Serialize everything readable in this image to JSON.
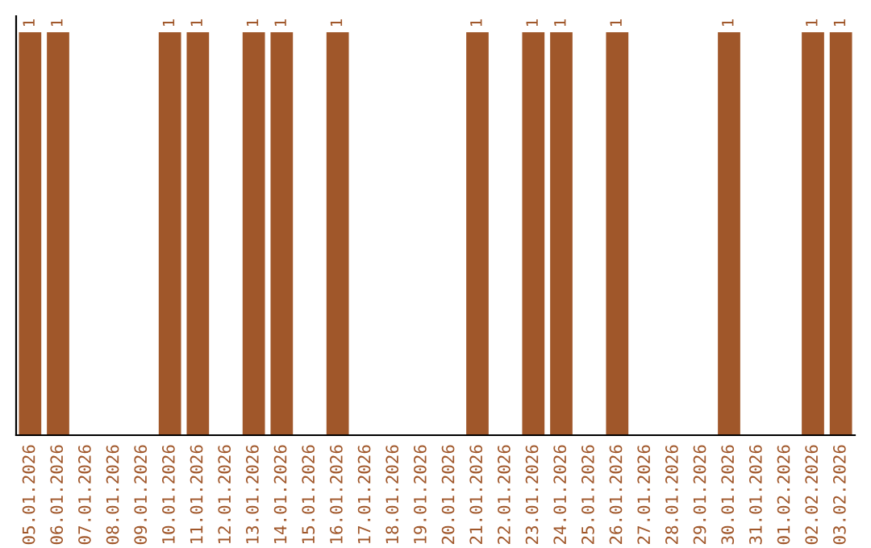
{
  "chart_data": {
    "type": "bar",
    "categories": [
      "05.01.2026",
      "06.01.2026",
      "07.01.2026",
      "08.01.2026",
      "09.01.2026",
      "10.01.2026",
      "11.01.2026",
      "12.01.2026",
      "13.01.2026",
      "14.01.2026",
      "15.01.2026",
      "16.01.2026",
      "17.01.2026",
      "18.01.2026",
      "19.01.2026",
      "20.01.2026",
      "21.01.2026",
      "22.01.2026",
      "23.01.2026",
      "24.01.2026",
      "25.01.2026",
      "26.01.2026",
      "27.01.2026",
      "28.01.2026",
      "29.01.2026",
      "30.01.2026",
      "31.01.2026",
      "01.02.2026",
      "02.02.2026",
      "03.02.2026"
    ],
    "values": [
      1,
      1,
      0,
      0,
      0,
      1,
      1,
      0,
      1,
      1,
      0,
      1,
      0,
      0,
      0,
      0,
      1,
      0,
      1,
      1,
      0,
      1,
      0,
      0,
      0,
      1,
      0,
      0,
      1,
      1
    ],
    "value_labels": [
      "1",
      "1",
      null,
      null,
      null,
      "1",
      "1",
      null,
      "1",
      "1",
      null,
      "1",
      null,
      null,
      null,
      null,
      "1",
      null,
      "1",
      "1",
      null,
      "1",
      null,
      null,
      null,
      "1",
      null,
      null,
      "1",
      "1"
    ],
    "color": "#a0572a",
    "tick_labels": "x",
    "grid": false,
    "legend": false
  }
}
